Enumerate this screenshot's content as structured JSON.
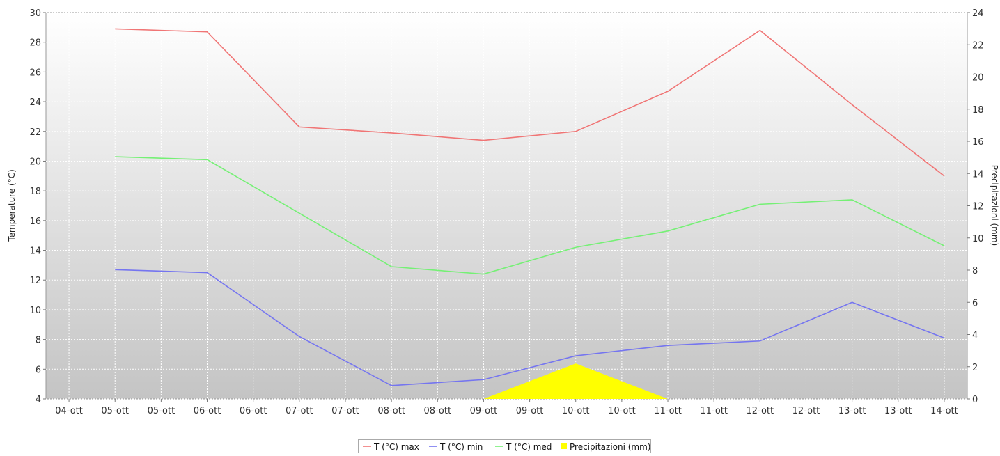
{
  "chart_data": {
    "type": "line",
    "title": "",
    "ylabel": "Temperature (°C)",
    "y2label": "Precipitazioni (mm)",
    "xlabel": "",
    "categories": [
      "04-ott",
      "05-ott",
      "05-ott",
      "06-ott",
      "06-ott",
      "07-ott",
      "07-ott",
      "08-ott",
      "08-ott",
      "09-ott",
      "09-ott",
      "10-ott",
      "10-ott",
      "11-ott",
      "11-ott",
      "12-ott",
      "12-ott",
      "13-ott",
      "13-ott",
      "14-ott"
    ],
    "ylim": [
      4,
      30
    ],
    "yticks": [
      4,
      6,
      8,
      10,
      12,
      14,
      16,
      18,
      20,
      22,
      24,
      26,
      28,
      30
    ],
    "y2lim": [
      0,
      24
    ],
    "y2ticks": [
      0,
      2,
      4,
      6,
      8,
      10,
      12,
      14,
      16,
      18,
      20,
      22,
      24
    ],
    "grid": true,
    "legend_position": "bottom-center",
    "series": [
      {
        "name": "T (°C) max",
        "axis": "left",
        "kind": "line",
        "color": "#f07575",
        "x": [
          1,
          3,
          5,
          7,
          9,
          11,
          13,
          15,
          17,
          19
        ],
        "values": [
          28.9,
          28.7,
          22.3,
          21.9,
          21.4,
          22.0,
          24.7,
          28.8,
          23.8,
          19.0
        ]
      },
      {
        "name": "T (°C) min",
        "axis": "left",
        "kind": "line",
        "color": "#7575f0",
        "x": [
          1,
          3,
          5,
          7,
          9,
          11,
          13,
          15,
          17,
          19
        ],
        "values": [
          12.7,
          12.5,
          8.2,
          4.9,
          5.3,
          6.9,
          7.6,
          7.9,
          10.5,
          8.1
        ]
      },
      {
        "name": "T (°C) med",
        "axis": "left",
        "kind": "line",
        "color": "#75f075",
        "x": [
          1,
          3,
          5,
          7,
          9,
          11,
          13,
          15,
          17,
          19
        ],
        "values": [
          20.3,
          20.1,
          16.5,
          12.9,
          12.4,
          14.2,
          15.3,
          17.1,
          17.4,
          14.3
        ]
      },
      {
        "name": "Precipitazioni (mm)",
        "axis": "right",
        "kind": "area",
        "color": "#ffff00",
        "x": [
          9,
          11,
          13
        ],
        "values": [
          0,
          2.2,
          0
        ]
      }
    ]
  }
}
